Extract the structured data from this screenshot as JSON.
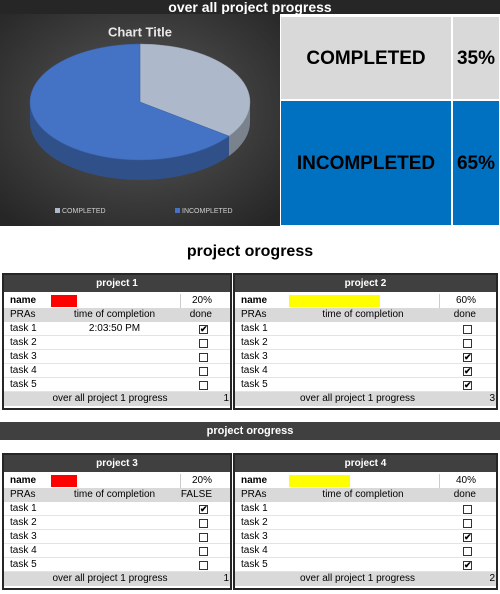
{
  "header": {
    "title": "over all project progress"
  },
  "chart_data": {
    "type": "pie",
    "title": "Chart Title",
    "categories": [
      "COMPLETED",
      "INCOMPLETED"
    ],
    "values": [
      35,
      65
    ],
    "colors": [
      "#adb9ca",
      "#4472c4"
    ]
  },
  "summary": {
    "rows": [
      {
        "label": "COMPLETED",
        "value": "35%",
        "color": "#d9d9d9"
      },
      {
        "label": "INCOMPLETED",
        "value": "65%",
        "color": "#0070c0"
      }
    ]
  },
  "sections": [
    "project orogress",
    "project orogress"
  ],
  "projects": [
    {
      "title": "project 1",
      "name_label": "name",
      "bar_color": "#ff0000",
      "progress": 20,
      "progress_label": "20%",
      "columns": [
        "PRAs",
        "time of completion",
        "done"
      ],
      "tasks": [
        {
          "name": "task 1",
          "time": "2:03:50 PM",
          "done": true
        },
        {
          "name": "task 2",
          "done": false
        },
        {
          "name": "task 3",
          "done": false
        },
        {
          "name": "task 4",
          "done": false
        },
        {
          "name": "task 5",
          "done": false
        }
      ],
      "footer": "over all project 1 progress",
      "count": 1
    },
    {
      "title": "project 2",
      "name_label": "name",
      "bar_color": "#ffff00",
      "progress": 60,
      "progress_label": "60%",
      "columns": [
        "PRAs",
        "time of completion",
        "done"
      ],
      "tasks": [
        {
          "name": "task 1",
          "done": false
        },
        {
          "name": "task 2",
          "done": false
        },
        {
          "name": "task 3",
          "done": true
        },
        {
          "name": "task 4",
          "done": true
        },
        {
          "name": "task 5",
          "done": true
        }
      ],
      "footer": "over all project 1 progress",
      "count": 3
    },
    {
      "title": "project 3",
      "name_label": "name",
      "bar_color": "#ff0000",
      "progress": 20,
      "progress_label": "20%",
      "columns": [
        "PRAs",
        "time of completion",
        "FALSE"
      ],
      "tasks": [
        {
          "name": "task 1",
          "done": true
        },
        {
          "name": "task 2",
          "done": false
        },
        {
          "name": "task 3",
          "done": false
        },
        {
          "name": "task 4",
          "done": false
        },
        {
          "name": "task 5",
          "done": false
        }
      ],
      "footer": "over all project 1 progress",
      "count": 1
    },
    {
      "title": "project 4",
      "name_label": "name",
      "bar_color": "#ffff00",
      "progress": 40,
      "progress_label": "40%",
      "columns": [
        "PRAs",
        "time of completion",
        "done"
      ],
      "tasks": [
        {
          "name": "task 1",
          "done": false
        },
        {
          "name": "task 2",
          "done": false
        },
        {
          "name": "task 3",
          "done": true
        },
        {
          "name": "task 4",
          "done": false
        },
        {
          "name": "task 5",
          "done": true
        }
      ],
      "footer": "over all project 1 progress",
      "count": 2
    }
  ]
}
